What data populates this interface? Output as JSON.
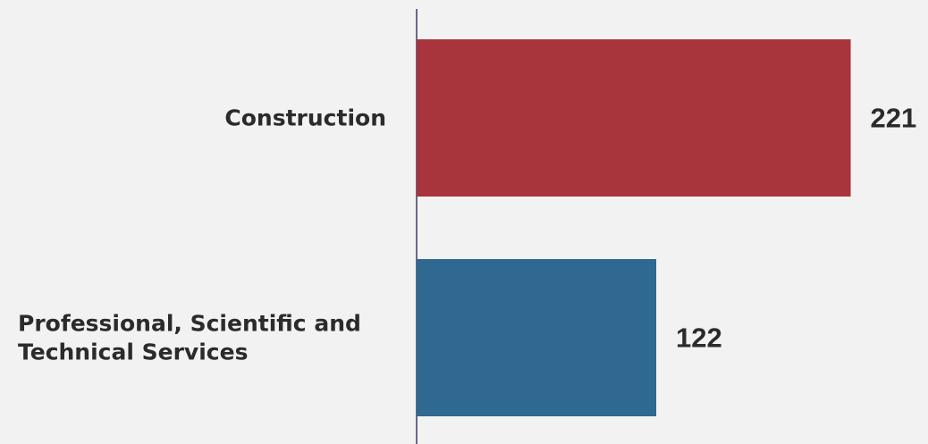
{
  "chart_data": {
    "type": "bar",
    "orientation": "horizontal",
    "categories": [
      [
        "Construction"
      ],
      [
        "Professional, Scientific and",
        "Technical Services"
      ]
    ],
    "values": [
      221,
      122
    ],
    "value_labels": [
      "221",
      "122"
    ],
    "colors": [
      "#a8343c",
      "#2f6890"
    ],
    "axis_color": "#3a3a6a",
    "title": "",
    "xlabel": "",
    "ylabel": "",
    "grid": false,
    "legend": "none"
  }
}
